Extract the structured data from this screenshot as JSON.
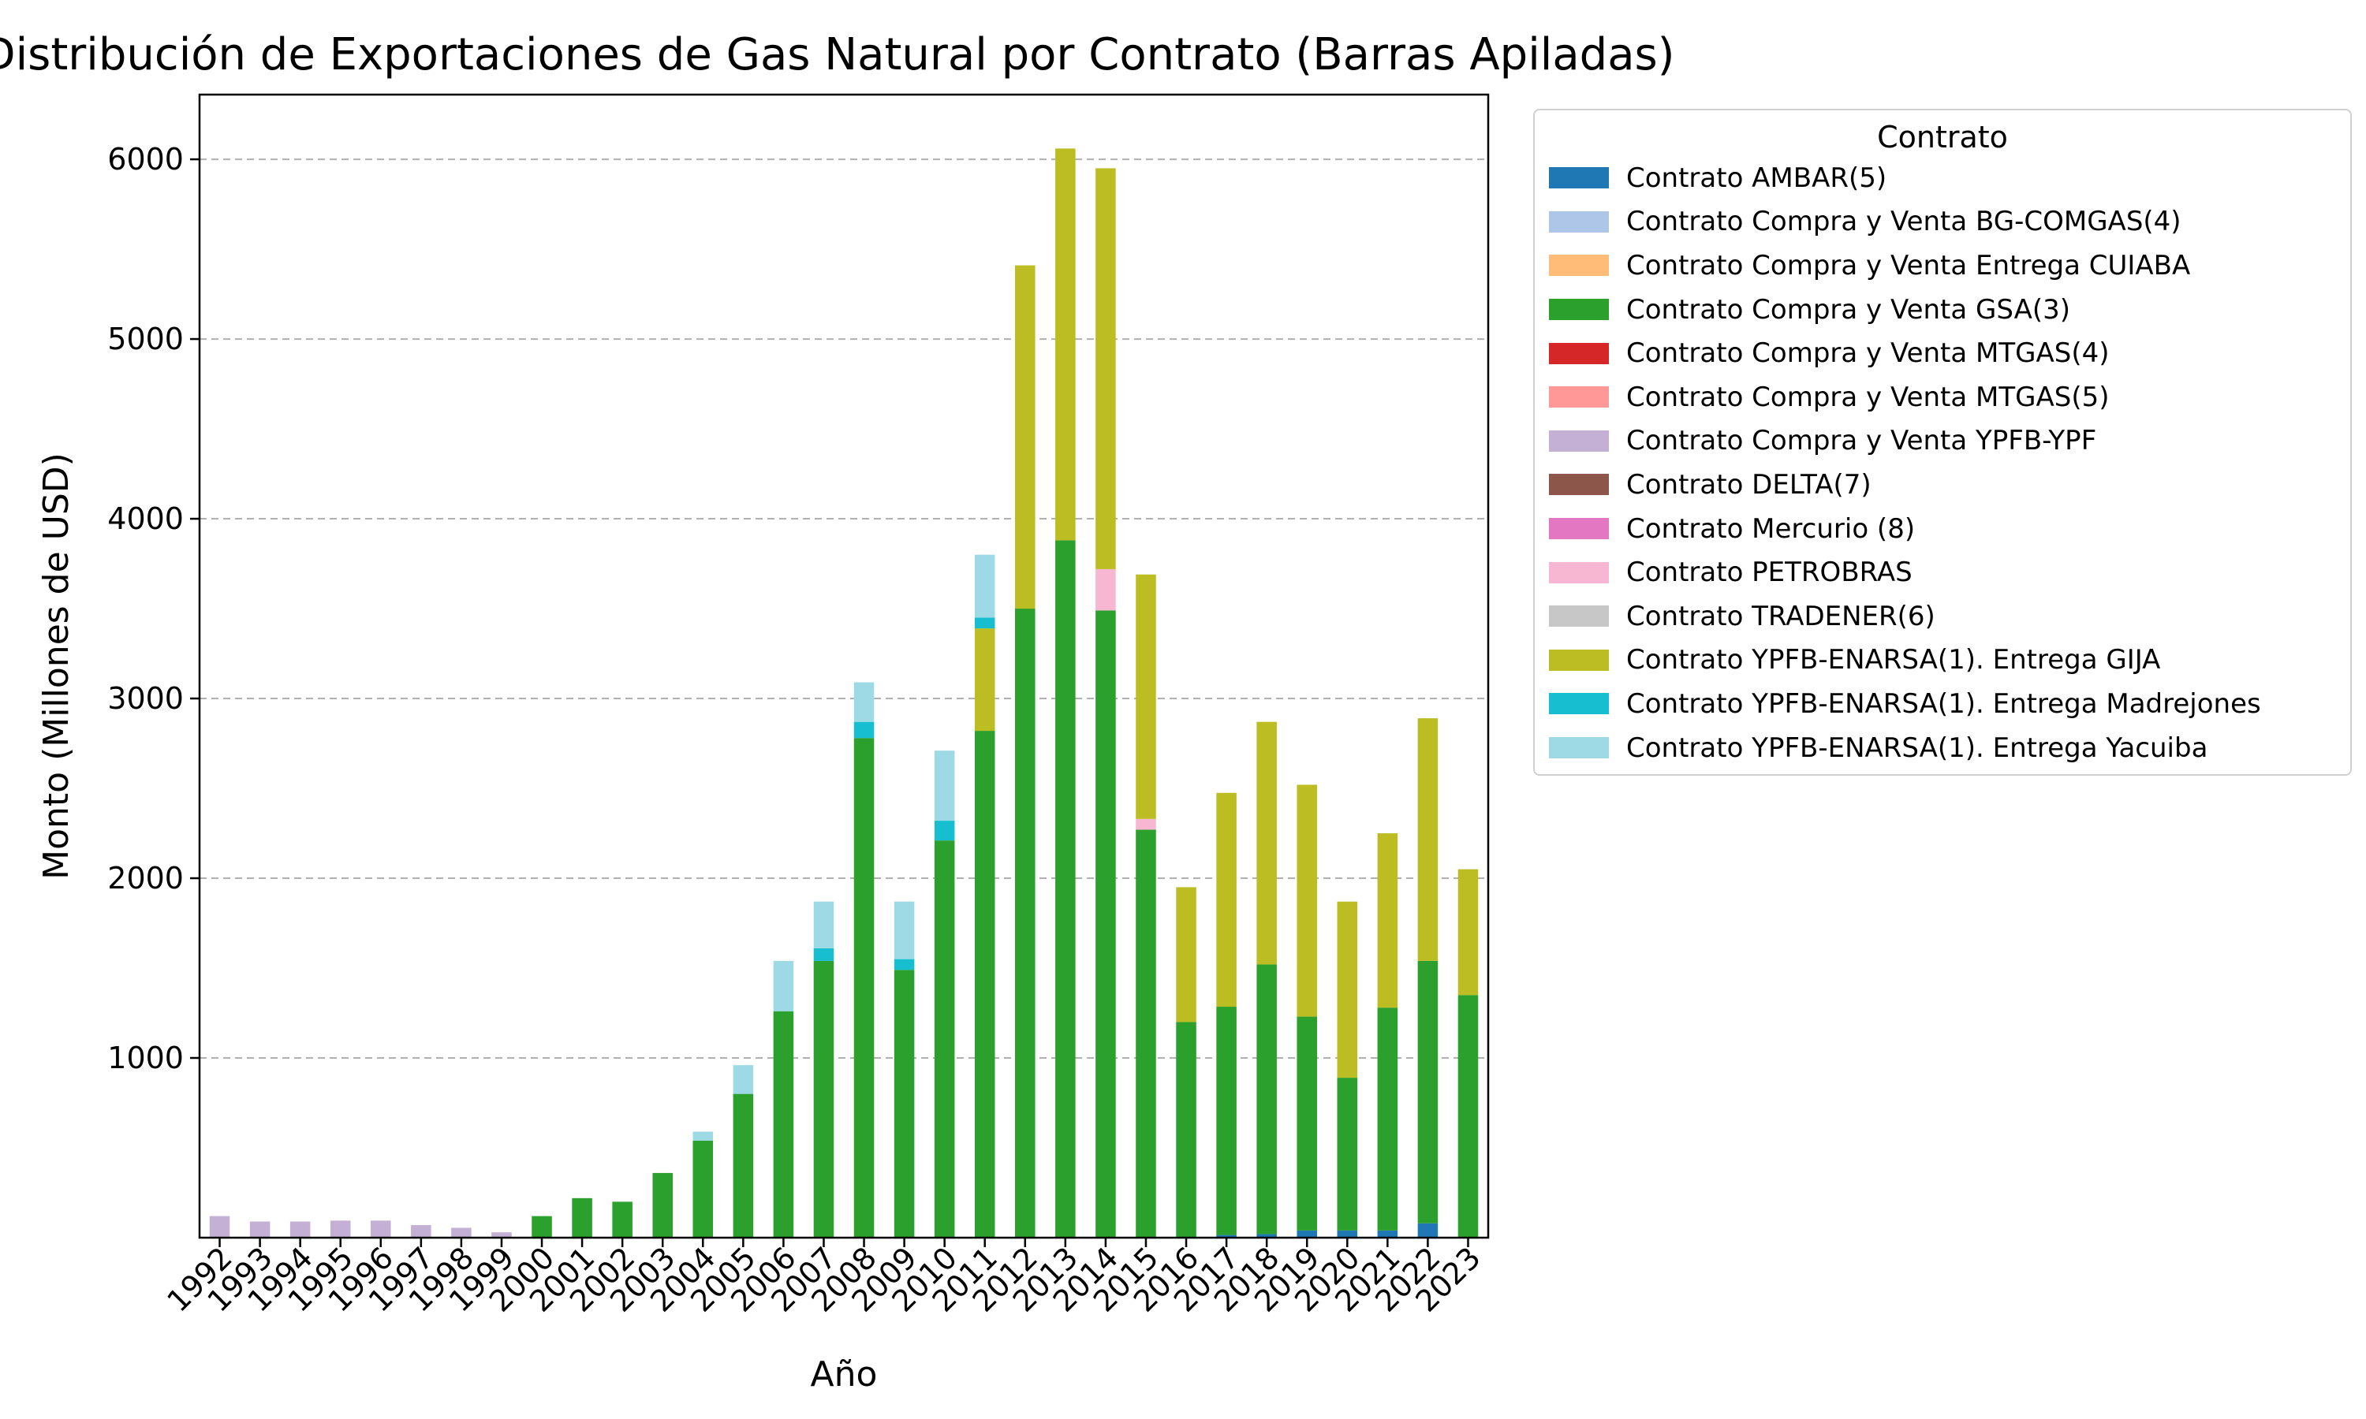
{
  "chart_data": {
    "type": "bar",
    "stacked": true,
    "title": "Distribución de Exportaciones de Gas Natural por Contrato (Barras Apiladas)",
    "xlabel": "Año",
    "ylabel": "Monto (Millones de USD)",
    "ylim": [
      0,
      6360
    ],
    "yticks": [
      1000,
      2000,
      3000,
      4000,
      5000,
      6000
    ],
    "grid": "y, dashed",
    "legend_title": "Contrato",
    "legend_position": "outside right, top",
    "categories": [
      "1992",
      "1993",
      "1994",
      "1995",
      "1996",
      "1997",
      "1998",
      "1999",
      "2000",
      "2001",
      "2002",
      "2003",
      "2004",
      "2005",
      "2006",
      "2007",
      "2008",
      "2009",
      "2010",
      "2011",
      "2012",
      "2013",
      "2014",
      "2015",
      "2016",
      "2017",
      "2018",
      "2019",
      "2020",
      "2021",
      "2022",
      "2023"
    ],
    "series": [
      {
        "name": "Contrato AMBAR(5)",
        "color": "#1f77b4",
        "values": [
          0,
          0,
          0,
          0,
          0,
          0,
          0,
          0,
          0,
          0,
          0,
          0,
          0,
          0,
          0,
          0,
          0,
          0,
          0,
          0,
          0,
          0,
          0,
          0,
          0,
          15,
          20,
          40,
          40,
          40,
          80,
          0
        ]
      },
      {
        "name": "Contrato Compra y Venta BG-COMGAS(4)",
        "color": "#aec7e8",
        "values": [
          0,
          0,
          0,
          0,
          0,
          0,
          0,
          0,
          0,
          0,
          0,
          0,
          0,
          0,
          0,
          0,
          0,
          0,
          0,
          0,
          0,
          0,
          0,
          0,
          0,
          0,
          0,
          0,
          0,
          0,
          0,
          0
        ]
      },
      {
        "name": "Contrato Compra y Venta Entrega CUIABA",
        "color": "#ffbb78",
        "values": [
          0,
          0,
          0,
          0,
          0,
          0,
          0,
          0,
          0,
          0,
          0,
          0,
          0,
          0,
          0,
          0,
          0,
          0,
          0,
          0,
          0,
          0,
          0,
          0,
          0,
          0,
          0,
          0,
          0,
          0,
          0,
          0
        ]
      },
      {
        "name": "Contrato Compra y Venta GSA(3)",
        "color": "#2ca02c",
        "values": [
          0,
          0,
          0,
          0,
          0,
          0,
          0,
          0,
          120,
          220,
          200,
          360,
          540,
          800,
          1260,
          1540,
          2780,
          1490,
          2210,
          2820,
          3500,
          3880,
          3490,
          2270,
          1200,
          1270,
          1500,
          1190,
          850,
          1240,
          1460,
          1350
        ]
      },
      {
        "name": "Contrato Compra y Venta MTGAS(4)",
        "color": "#d62728",
        "values": [
          0,
          0,
          0,
          0,
          0,
          0,
          0,
          0,
          0,
          0,
          0,
          0,
          0,
          0,
          0,
          0,
          0,
          0,
          0,
          0,
          0,
          0,
          0,
          0,
          0,
          0,
          0,
          0,
          0,
          0,
          0,
          0
        ]
      },
      {
        "name": "Contrato Compra y Venta MTGAS(5)",
        "color": "#ff9896",
        "values": [
          0,
          0,
          0,
          0,
          0,
          0,
          0,
          0,
          0,
          0,
          0,
          0,
          0,
          0,
          0,
          0,
          0,
          0,
          0,
          0,
          0,
          0,
          0,
          0,
          0,
          0,
          0,
          0,
          0,
          0,
          0,
          0
        ]
      },
      {
        "name": "Contrato Compra y Venta YPFB-YPF",
        "color": "#c5b0d5",
        "values": [
          120,
          90,
          90,
          95,
          95,
          70,
          55,
          30,
          0,
          0,
          0,
          0,
          0,
          0,
          0,
          0,
          0,
          0,
          0,
          0,
          0,
          0,
          0,
          0,
          0,
          0,
          0,
          0,
          0,
          0,
          0,
          0
        ]
      },
      {
        "name": "Contrato DELTA(7)",
        "color": "#8c564b",
        "values": [
          0,
          0,
          0,
          0,
          0,
          0,
          0,
          0,
          0,
          0,
          0,
          0,
          0,
          0,
          0,
          0,
          0,
          0,
          0,
          0,
          0,
          0,
          0,
          0,
          0,
          0,
          0,
          0,
          0,
          0,
          0,
          0
        ]
      },
      {
        "name": "Contrato Mercurio (8)",
        "color": "#e377c2",
        "values": [
          0,
          0,
          0,
          0,
          0,
          0,
          0,
          0,
          0,
          0,
          0,
          0,
          0,
          0,
          0,
          0,
          0,
          0,
          0,
          0,
          0,
          0,
          0,
          0,
          0,
          0,
          0,
          0,
          0,
          0,
          0,
          0
        ]
      },
      {
        "name": "Contrato PETROBRAS",
        "color": "#f7b6d2",
        "values": [
          0,
          0,
          0,
          0,
          0,
          0,
          0,
          0,
          0,
          0,
          0,
          0,
          0,
          0,
          0,
          0,
          0,
          0,
          0,
          0,
          0,
          0,
          230,
          60,
          0,
          0,
          0,
          0,
          0,
          0,
          0,
          0
        ]
      },
      {
        "name": "Contrato TRADENER(6)",
        "color": "#c7c7c7",
        "values": [
          0,
          0,
          0,
          0,
          0,
          0,
          0,
          0,
          0,
          0,
          0,
          0,
          0,
          0,
          0,
          0,
          0,
          0,
          0,
          0,
          0,
          0,
          0,
          0,
          0,
          0,
          0,
          0,
          0,
          0,
          0,
          0
        ]
      },
      {
        "name": "Contrato YPFB-ENARSA(1). Entrega GIJA",
        "color": "#bcbd22",
        "values": [
          0,
          0,
          0,
          0,
          0,
          0,
          0,
          0,
          0,
          0,
          0,
          0,
          0,
          0,
          0,
          0,
          0,
          0,
          0,
          570,
          1910,
          2180,
          2230,
          1360,
          750,
          1190,
          1350,
          1290,
          980,
          970,
          1350,
          700
        ]
      },
      {
        "name": "Contrato YPFB-ENARSA(1). Entrega Madrejones",
        "color": "#17becf",
        "values": [
          0,
          0,
          0,
          0,
          0,
          0,
          0,
          0,
          0,
          0,
          0,
          0,
          0,
          0,
          0,
          70,
          90,
          60,
          110,
          60,
          0,
          0,
          0,
          0,
          0,
          0,
          0,
          0,
          0,
          0,
          0,
          0
        ]
      },
      {
        "name": "Contrato YPFB-ENARSA(1). Entrega Yacuiba",
        "color": "#9edae5",
        "values": [
          0,
          0,
          0,
          0,
          0,
          0,
          0,
          0,
          0,
          0,
          0,
          0,
          50,
          160,
          280,
          260,
          220,
          320,
          390,
          350,
          0,
          0,
          0,
          0,
          0,
          0,
          0,
          0,
          0,
          0,
          0,
          0
        ]
      }
    ]
  }
}
